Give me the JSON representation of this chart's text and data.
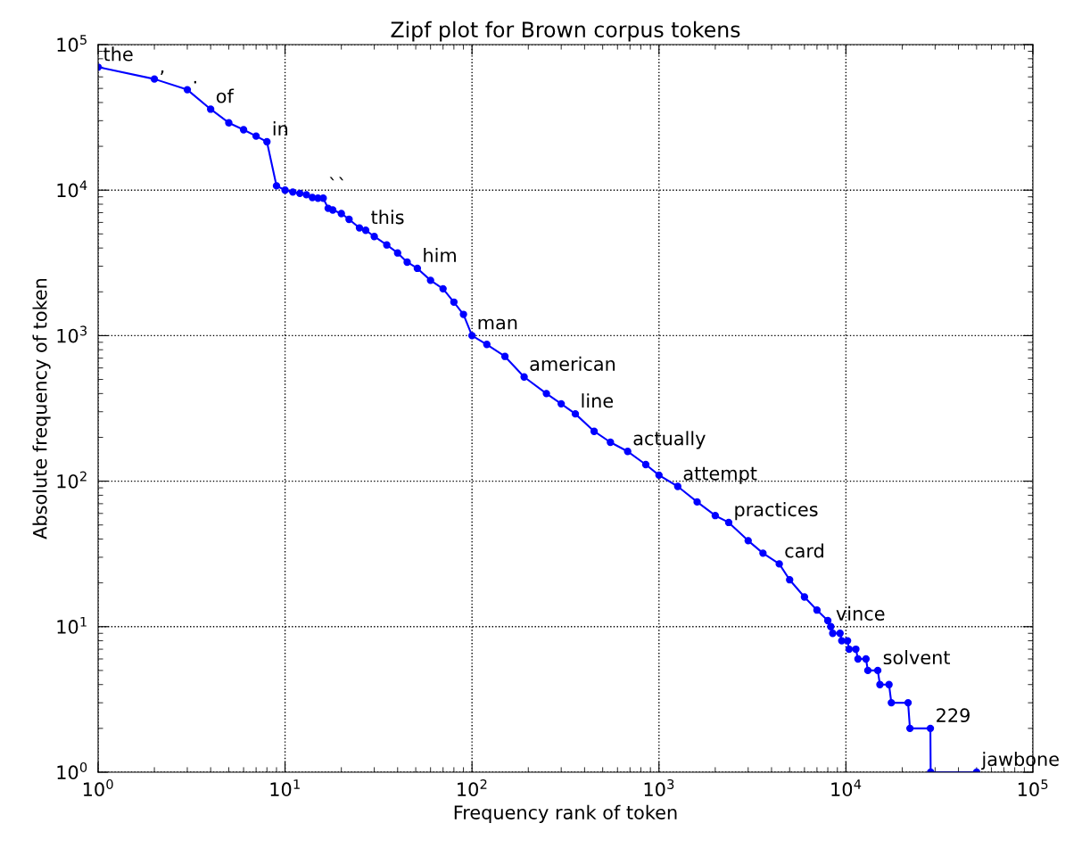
{
  "chart_data": {
    "type": "line",
    "title": "Zipf plot for Brown corpus tokens",
    "xlabel": "Frequency rank of token",
    "ylabel": "Absolute frequency of token",
    "log": "xy",
    "grid": true,
    "marker": "circle",
    "line_style": "solid",
    "xlim": [
      1,
      100000
    ],
    "ylim": [
      1,
      100000
    ],
    "xticks": [
      {
        "value": 1,
        "label": "10$^{0}$"
      },
      {
        "value": 10,
        "label": "10$^{1}$"
      },
      {
        "value": 100,
        "label": "10$^{2}$"
      },
      {
        "value": 1000,
        "label": "10$^{3}$"
      },
      {
        "value": 10000,
        "label": "10$^{4}$"
      },
      {
        "value": 100000,
        "label": "10$^{5}$"
      }
    ],
    "yticks": [
      {
        "value": 1,
        "label": "10$^{0}$"
      },
      {
        "value": 10,
        "label": "10$^{1}$"
      },
      {
        "value": 100,
        "label": "10$^{2}$"
      },
      {
        "value": 1000,
        "label": "10$^{3}$"
      },
      {
        "value": 10000,
        "label": "10$^{4}$"
      },
      {
        "value": 100000,
        "label": "10$^{5}$"
      }
    ],
    "series": [
      {
        "color": "#0000ff",
        "x": [
          1,
          2,
          3,
          4,
          5,
          6,
          7,
          8,
          9,
          10,
          11,
          12,
          13,
          14,
          15,
          16,
          17,
          18,
          20,
          22,
          25,
          27,
          30,
          35,
          40,
          45,
          51,
          60,
          70,
          80,
          90,
          100,
          120,
          150,
          190,
          250,
          300,
          357,
          450,
          550,
          680,
          850,
          1000,
          1260,
          1600,
          2000,
          2360,
          3000,
          3600,
          4400,
          5000,
          6000,
          7000,
          8000,
          8300,
          8500,
          9300,
          9500,
          10200,
          10400,
          11300,
          11600,
          12800,
          13100,
          14800,
          15200,
          17000,
          17500,
          21500,
          22000,
          28300,
          28400,
          50000
        ],
        "values": [
          70000,
          58000,
          49000,
          36000,
          29000,
          26000,
          23500,
          21500,
          10700,
          10000,
          9700,
          9500,
          9300,
          8900,
          8800,
          8800,
          7500,
          7300,
          6900,
          6300,
          5500,
          5300,
          4800,
          4200,
          3700,
          3200,
          2900,
          2400,
          2100,
          1700,
          1400,
          1000,
          870,
          720,
          520,
          400,
          340,
          290,
          220,
          185,
          160,
          130,
          110,
          92,
          72,
          58,
          52,
          39,
          32,
          27,
          21,
          16,
          13,
          11,
          10,
          9,
          9,
          8,
          8,
          7,
          7,
          6,
          6,
          5,
          5,
          4,
          4,
          3,
          3,
          2,
          2,
          1,
          1
        ]
      }
    ],
    "annotations": [
      {
        "text": "the",
        "x": 1,
        "y": 70000
      },
      {
        "text": ",",
        "x": 2,
        "y": 58000
      },
      {
        "text": ".",
        "x": 3,
        "y": 49000
      },
      {
        "text": "of",
        "x": 4,
        "y": 36000
      },
      {
        "text": "in",
        "x": 8,
        "y": 21500
      },
      {
        "text": "``",
        "x": 16,
        "y": 8800
      },
      {
        "text": "this",
        "x": 27,
        "y": 5300
      },
      {
        "text": "him",
        "x": 51,
        "y": 2900
      },
      {
        "text": "man",
        "x": 100,
        "y": 1000
      },
      {
        "text": "american",
        "x": 190,
        "y": 520
      },
      {
        "text": "line",
        "x": 357,
        "y": 290
      },
      {
        "text": "actually",
        "x": 680,
        "y": 160
      },
      {
        "text": "attempt",
        "x": 1260,
        "y": 92
      },
      {
        "text": "practices",
        "x": 2360,
        "y": 52
      },
      {
        "text": "card",
        "x": 4400,
        "y": 27
      },
      {
        "text": "vince",
        "x": 8300,
        "y": 10
      },
      {
        "text": "solvent",
        "x": 14800,
        "y": 5
      },
      {
        "text": "229",
        "x": 28300,
        "y": 2
      },
      {
        "text": "jawbone",
        "x": 50000,
        "y": 1
      }
    ]
  }
}
